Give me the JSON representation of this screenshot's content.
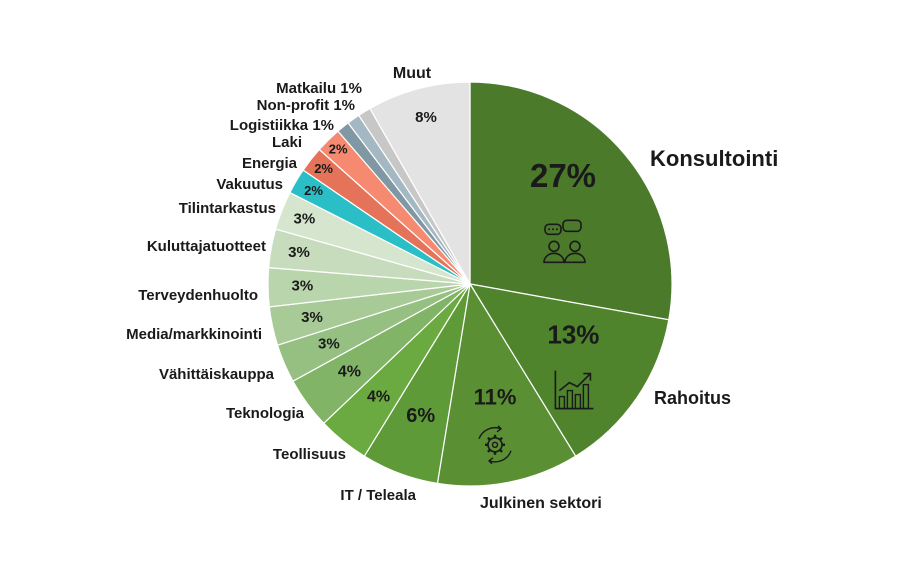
{
  "chart_data": {
    "type": "pie",
    "slices": [
      {
        "label": "Konsultointi",
        "value": 27,
        "value_label": "27%",
        "color": "#4a7a2a",
        "icon": "consulting-people-icon"
      },
      {
        "label": "Rahoitus",
        "value": 13,
        "value_label": "13%",
        "color": "#4f832c",
        "icon": "finance-chart-icon"
      },
      {
        "label": "Julkinen sektori",
        "value": 11,
        "value_label": "11%",
        "color": "#5a9033",
        "icon": "gear-cycle-icon"
      },
      {
        "label": "IT / Teleala",
        "value": 6,
        "value_label": "6%",
        "color": "#5e9a38"
      },
      {
        "label": "Teollisuus",
        "value": 4,
        "value_label": "4%",
        "color": "#6aaa40"
      },
      {
        "label": "Teknologia",
        "value": 4,
        "value_label": "4%",
        "color": "#82b468"
      },
      {
        "label": "Vähittäiskauppa",
        "value": 3,
        "value_label": "3%",
        "color": "#96c082"
      },
      {
        "label": "Media/markkinointi",
        "value": 3,
        "value_label": "3%",
        "color": "#a8ca97"
      },
      {
        "label": "Terveydenhuolto",
        "value": 3,
        "value_label": "3%",
        "color": "#b8d5ab"
      },
      {
        "label": "Kuluttajatuotteet",
        "value": 3,
        "value_label": "3%",
        "color": "#c6dcbc"
      },
      {
        "label": "Tilintarkastus",
        "value": 3,
        "value_label": "3%",
        "color": "#d6e6ce"
      },
      {
        "label": "Vakuutus",
        "value": 2,
        "value_label": "2%",
        "color": "#2abfc6"
      },
      {
        "label": "Energia",
        "value": 2,
        "value_label": "2%",
        "color": "#e4735a"
      },
      {
        "label": "Laki",
        "value": 2,
        "value_label": "2%",
        "color": "#f58a70"
      },
      {
        "label": "Logistiikka 1%",
        "value": 1,
        "value_label": "",
        "color": "#7f98a3"
      },
      {
        "label": "Non-profit 1%",
        "value": 1,
        "value_label": "",
        "color": "#a3b8c2"
      },
      {
        "label": "Matkailu 1%",
        "value": 1,
        "value_label": "",
        "color": "#c7c7c7"
      },
      {
        "label": "Muut",
        "value": 8,
        "value_label": "8%",
        "color": "#e3e3e3"
      }
    ]
  }
}
